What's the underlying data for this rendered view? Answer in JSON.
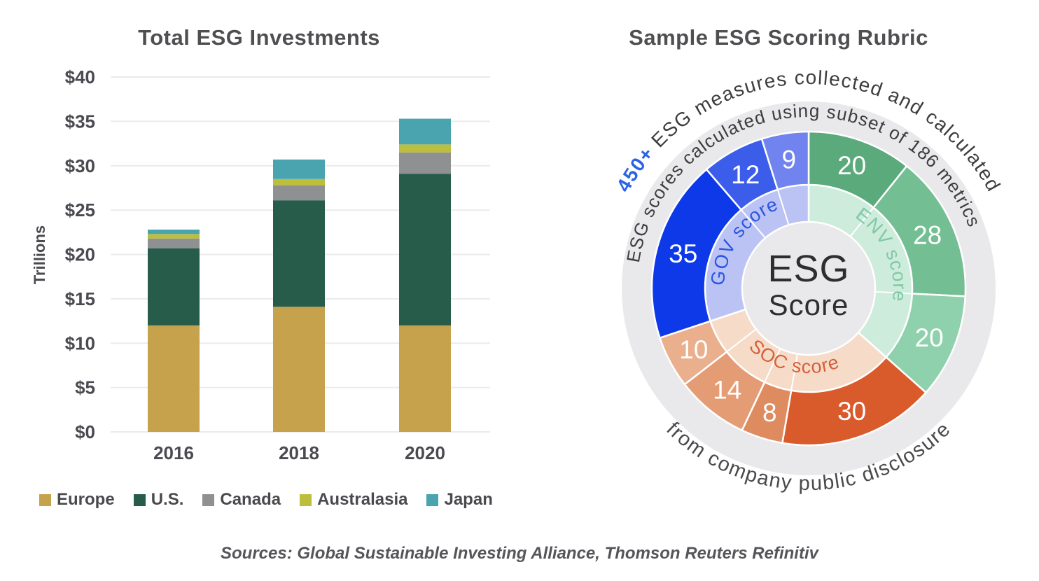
{
  "left_chart": {
    "title": "Total ESG Investments",
    "chart_data": {
      "type": "bar",
      "stacked": true,
      "title": "Total ESG Investments",
      "categories": [
        "2016",
        "2018",
        "2020"
      ],
      "series": [
        {
          "name": "Europe",
          "color": "#C5A24B",
          "values": [
            12.0,
            14.1,
            12.0
          ]
        },
        {
          "name": "U.S.",
          "color": "#275C4B",
          "values": [
            8.7,
            12.0,
            17.1
          ]
        },
        {
          "name": "Canada",
          "color": "#8F9092",
          "values": [
            1.1,
            1.7,
            2.4
          ]
        },
        {
          "name": "Australasia",
          "color": "#BCBE3C",
          "values": [
            0.5,
            0.7,
            0.9
          ]
        },
        {
          "name": "Japan",
          "color": "#4AA4B0",
          "values": [
            0.5,
            2.2,
            2.9
          ]
        }
      ],
      "stack_totals": [
        22.8,
        30.7,
        35.3
      ],
      "xlabel": "",
      "ylabel": "Trillions",
      "ylim": [
        0,
        40
      ],
      "y_tick_step": 5,
      "y_tick_prefix": "$",
      "y_ticks": [
        "$0",
        "$5",
        "$10",
        "$15",
        "$20",
        "$25",
        "$30",
        "$35",
        "$40"
      ],
      "grid": true,
      "legend_position": "bottom",
      "gridline_color": "#EBEBEB"
    }
  },
  "right_chart": {
    "title": "Sample ESG Scoring Rubric",
    "chart_data": {
      "type": "pie",
      "subtype": "sunburst-donut",
      "center_label_line1": "ESG",
      "center_label_line2": "Score",
      "total_metrics": 186,
      "ring_background": "#E9E9EC",
      "arc_text_outer_highlight": "450+",
      "arc_text_outer_highlight_color": "#2B63E8",
      "arc_text_outer": "ESG measures collected and calculated",
      "arc_text_middle": "ESG scores calculated using subset of 186 metrics",
      "arc_text_bottom": "from company public disclosure",
      "sections": [
        {
          "name": "ENV score",
          "inner_color": "#CDECDC",
          "label_color": "#7FC9A4",
          "label_direction": "cw",
          "segments": [
            {
              "value": 20,
              "color": "#5BAA7B"
            },
            {
              "value": 28,
              "color": "#73BF93"
            },
            {
              "value": 20,
              "color": "#8FD1AC"
            }
          ]
        },
        {
          "name": "SOC score",
          "inner_color": "#F6DCC8",
          "label_color": "#D4603A",
          "label_direction": "ccw",
          "segments": [
            {
              "value": 30,
              "color": "#D95A2B"
            },
            {
              "value": 8,
              "color": "#DE8B60"
            },
            {
              "value": 14,
              "color": "#E49C75"
            },
            {
              "value": 10,
              "color": "#EAAF8C"
            }
          ]
        },
        {
          "name": "GOV score",
          "inner_color": "#BAC3F4",
          "label_color": "#2B55E2",
          "label_direction": "cw",
          "segments": [
            {
              "value": 35,
              "color": "#0D39E9"
            },
            {
              "value": 12,
              "color": "#3C5CEA"
            },
            {
              "value": 9,
              "color": "#7083EE"
            }
          ]
        }
      ]
    }
  },
  "sources": "Sources: Global Sustainable Investing Alliance, Thomson Reuters Refinitiv"
}
